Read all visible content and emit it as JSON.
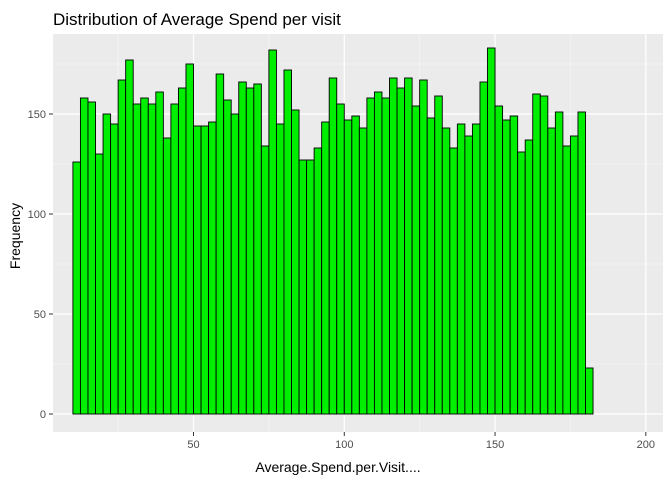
{
  "chart_data": {
    "type": "bar",
    "title": "Distribution of Average Spend per visit",
    "xlabel": "Average.Spend.per.Visit....",
    "ylabel": "Frequency",
    "bin_width": 2.5,
    "x_first_bin_start": 10,
    "xlim": [
      3.4,
      205.7
    ],
    "ylim": [
      -9,
      190
    ],
    "x_ticks": [
      50,
      100,
      150,
      200
    ],
    "y_ticks": [
      0,
      50,
      100,
      150
    ],
    "grid": true,
    "colors": {
      "panel_background": "#ebebeb",
      "grid_major": "#ffffff",
      "grid_minor": "#f5f5f5",
      "bar_fill": "#00ee00",
      "bar_outline": "#000000"
    },
    "values": [
      126,
      158,
      156,
      130,
      150,
      145,
      167,
      177,
      155,
      158,
      155,
      161,
      138,
      155,
      163,
      175,
      144,
      144,
      146,
      170,
      157,
      150,
      166,
      163,
      165,
      134,
      182,
      145,
      172,
      152,
      127,
      127,
      133,
      146,
      168,
      155,
      147,
      149,
      143,
      158,
      161,
      158,
      168,
      163,
      168,
      154,
      167,
      148,
      159,
      143,
      133,
      145,
      139,
      145,
      166,
      183,
      154,
      147,
      149,
      131,
      137,
      160,
      159,
      143,
      151,
      134,
      139,
      151,
      23
    ]
  }
}
